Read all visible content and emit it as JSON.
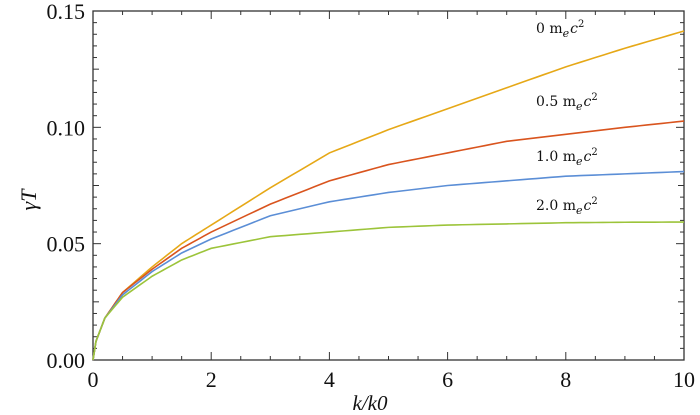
{
  "chart_data": {
    "type": "line",
    "title": "",
    "xlabel": "k/k0",
    "ylabel": "γT",
    "xlim": [
      0,
      10
    ],
    "ylim": [
      0,
      0.15
    ],
    "grid": false,
    "x_ticks": [
      "0",
      "2",
      "4",
      "6",
      "8",
      "10"
    ],
    "y_ticks": [
      "0.00",
      "0.05",
      "0.10",
      "0.15"
    ],
    "x": [
      0,
      0.05,
      0.2,
      0.5,
      1,
      1.5,
      2,
      3,
      4,
      5,
      6,
      7,
      8,
      9,
      10
    ],
    "series": [
      {
        "name": "0 m_e c^2",
        "label_main": "0 m",
        "label_sub": "e",
        "label_c": "c",
        "label_sup": "2",
        "color": "#e6a817",
        "values": [
          0,
          0.008,
          0.018,
          0.029,
          0.04,
          0.05,
          0.058,
          0.074,
          0.089,
          0.099,
          0.108,
          0.117,
          0.126,
          0.134,
          0.1414
        ]
      },
      {
        "name": "0.5 m_e c^2",
        "label_main": "0.5 m",
        "label_sub": "e",
        "label_c": "c",
        "label_sup": "2",
        "color": "#d9541e",
        "values": [
          0,
          0.008,
          0.018,
          0.029,
          0.039,
          0.048,
          0.055,
          0.067,
          0.077,
          0.084,
          0.089,
          0.094,
          0.097,
          0.1,
          0.1027
        ]
      },
      {
        "name": "1.0 m_e c^2",
        "label_main": "1.0 m",
        "label_sub": "e",
        "label_c": "c",
        "label_sup": "2",
        "color": "#5b8ed6",
        "values": [
          0,
          0.008,
          0.018,
          0.028,
          0.038,
          0.046,
          0.052,
          0.062,
          0.068,
          0.072,
          0.075,
          0.077,
          0.079,
          0.08,
          0.081
        ]
      },
      {
        "name": "2.0 m_e c^2",
        "label_main": "2.0 m",
        "label_sub": "e",
        "label_c": "c",
        "label_sup": "2",
        "color": "#9cc43a",
        "values": [
          0,
          0.008,
          0.018,
          0.027,
          0.036,
          0.043,
          0.048,
          0.053,
          0.055,
          0.057,
          0.058,
          0.0585,
          0.059,
          0.0592,
          0.0593
        ]
      }
    ]
  }
}
